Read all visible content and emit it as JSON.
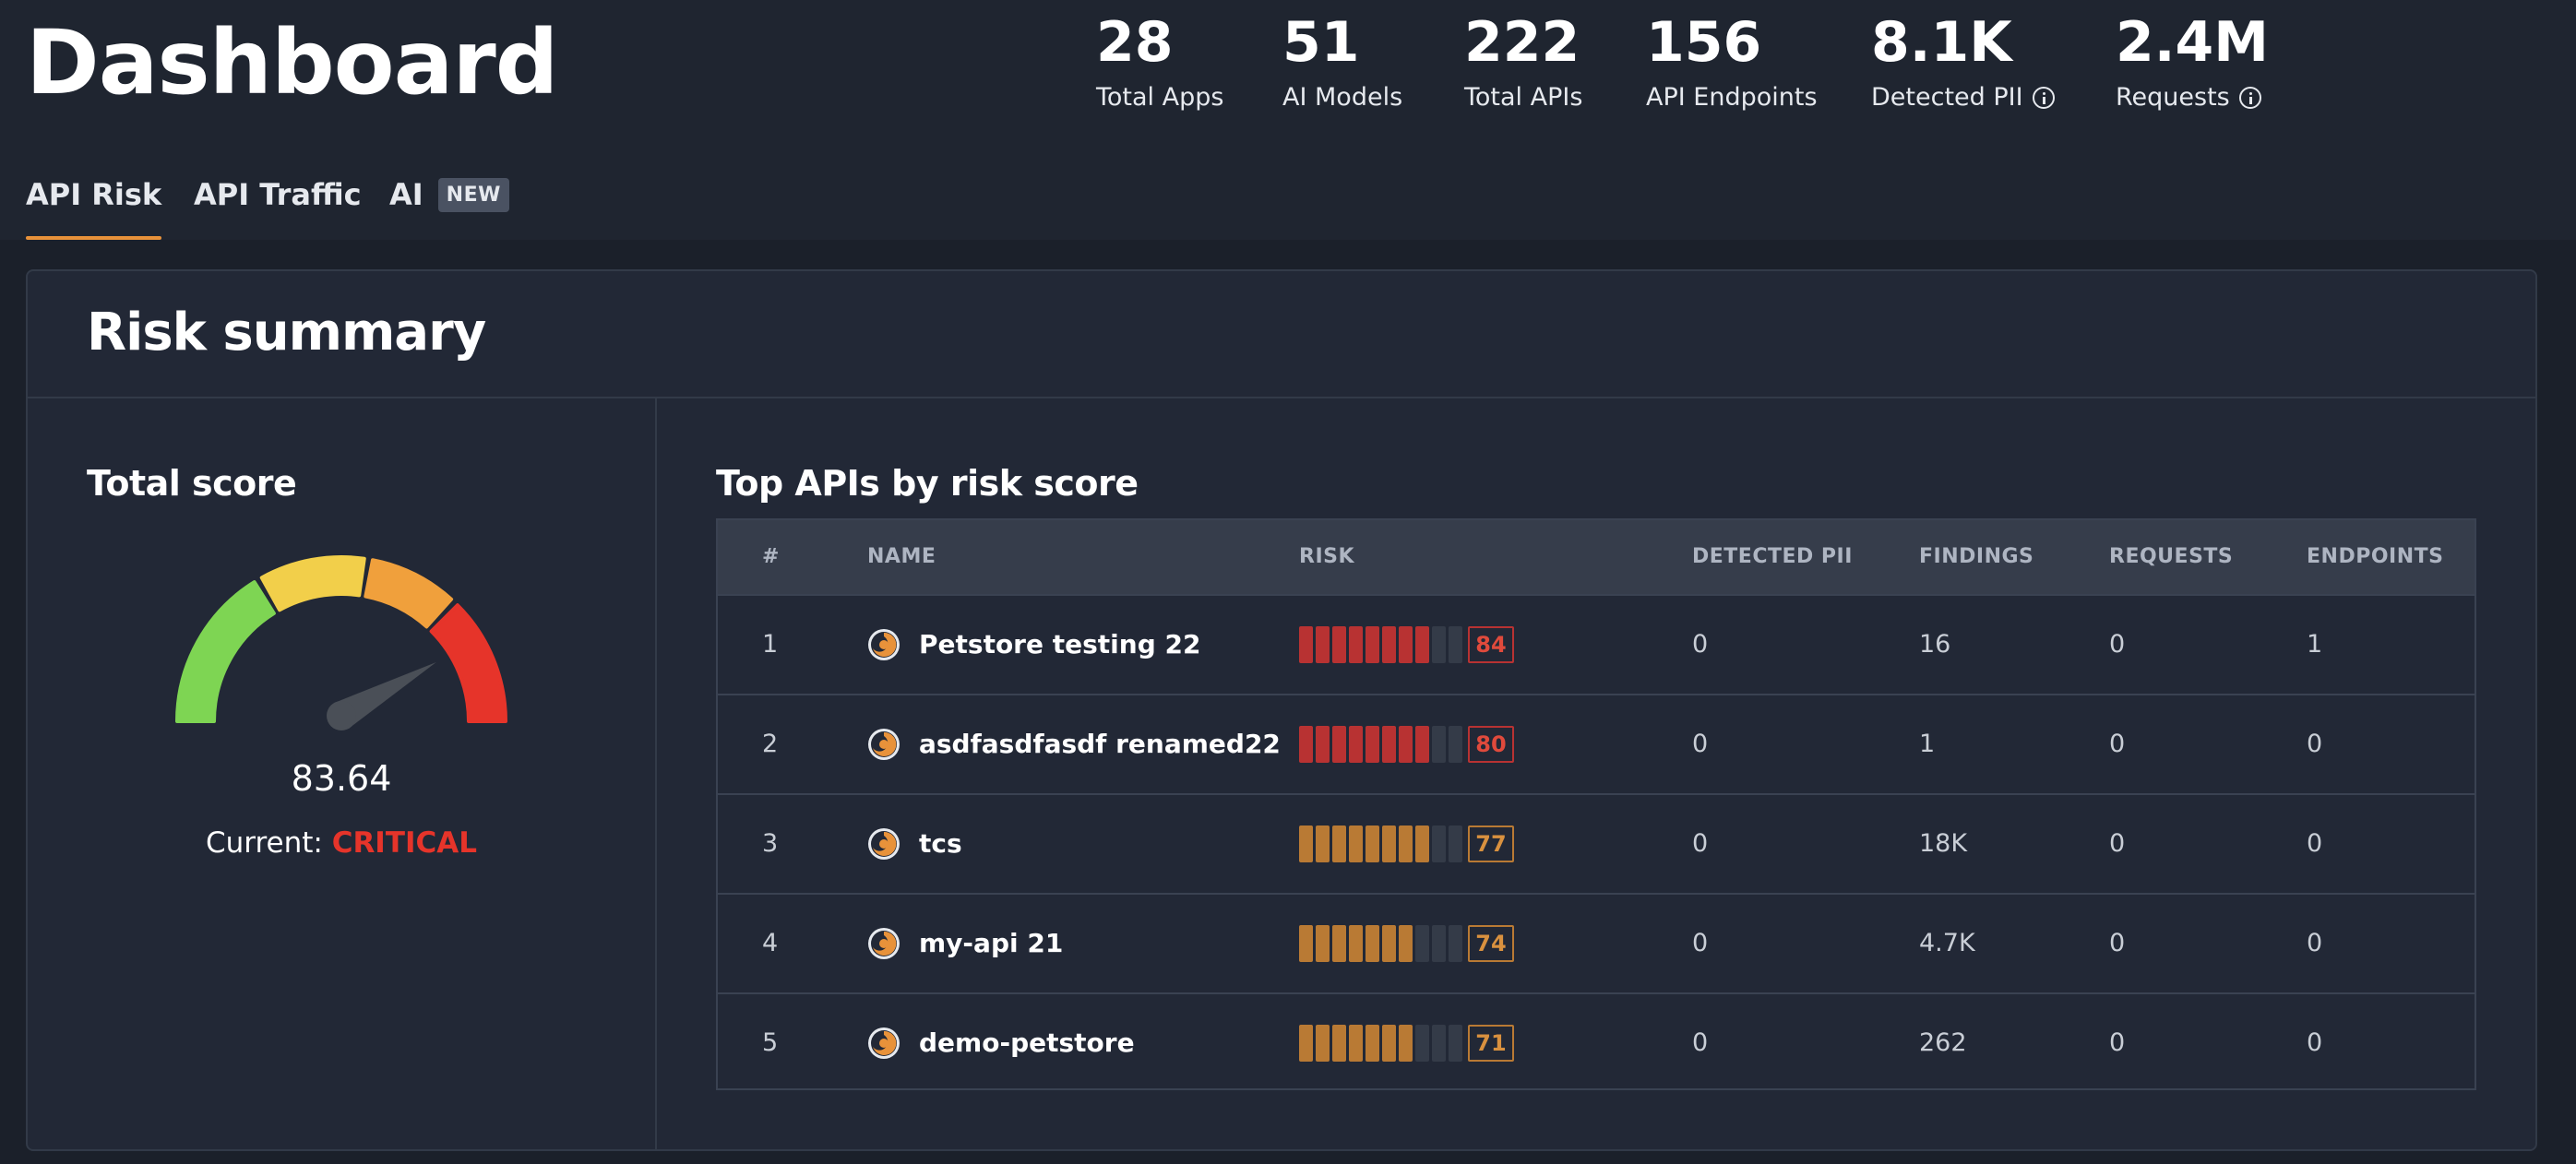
{
  "header": {
    "title": "Dashboard",
    "stats": [
      {
        "value": "28",
        "label": "Total Apps",
        "info": false
      },
      {
        "value": "51",
        "label": "AI Models",
        "info": false
      },
      {
        "value": "222",
        "label": "Total APIs",
        "info": false
      },
      {
        "value": "156",
        "label": "API Endpoints",
        "info": false
      },
      {
        "value": "8.1K",
        "label": "Detected PII",
        "info": true
      },
      {
        "value": "2.4M",
        "label": "Requests",
        "info": true
      }
    ],
    "tabs": [
      {
        "label": "API Risk",
        "active": true
      },
      {
        "label": "API Traffic",
        "active": false
      },
      {
        "label": "AI",
        "active": false,
        "badge": "NEW"
      }
    ]
  },
  "risk_summary": {
    "title": "Risk summary",
    "total_score": {
      "title": "Total score",
      "value": "83.64",
      "current_label": "Current: ",
      "current_level": "CRITICAL",
      "gauge_fraction": 0.8364,
      "colors": {
        "low": "#7ed553",
        "moderate": "#f2cf4a",
        "high": "#f0a03c",
        "critical": "#e6342a",
        "needle": "#4a4f57"
      }
    },
    "top_apis": {
      "title": "Top APIs by risk score",
      "columns": [
        "#",
        "NAME",
        "RISK",
        "DETECTED PII",
        "FINDINGS",
        "REQUESTS",
        "ENDPOINTS"
      ],
      "risk_colors": {
        "critical": "#b83232",
        "high": "#b97a34",
        "empty": "#343b48"
      },
      "rows": [
        {
          "rank": "1",
          "name": "Petstore testing 22",
          "risk": "84",
          "risk_level": "critical",
          "pii": "0",
          "findings": "16",
          "requests": "0",
          "endpoints": "1"
        },
        {
          "rank": "2",
          "name": "asdfasdfasdf renamed22",
          "risk": "80",
          "risk_level": "critical",
          "pii": "0",
          "findings": "1",
          "requests": "0",
          "endpoints": "0"
        },
        {
          "rank": "3",
          "name": "tcs",
          "risk": "77",
          "risk_level": "high",
          "pii": "0",
          "findings": "18K",
          "requests": "0",
          "endpoints": "0"
        },
        {
          "rank": "4",
          "name": "my-api 21",
          "risk": "74",
          "risk_level": "high",
          "pii": "0",
          "findings": "4.7K",
          "requests": "0",
          "endpoints": "0"
        },
        {
          "rank": "5",
          "name": "demo-petstore",
          "risk": "71",
          "risk_level": "high",
          "pii": "0",
          "findings": "262",
          "requests": "0",
          "endpoints": "0"
        }
      ]
    }
  }
}
